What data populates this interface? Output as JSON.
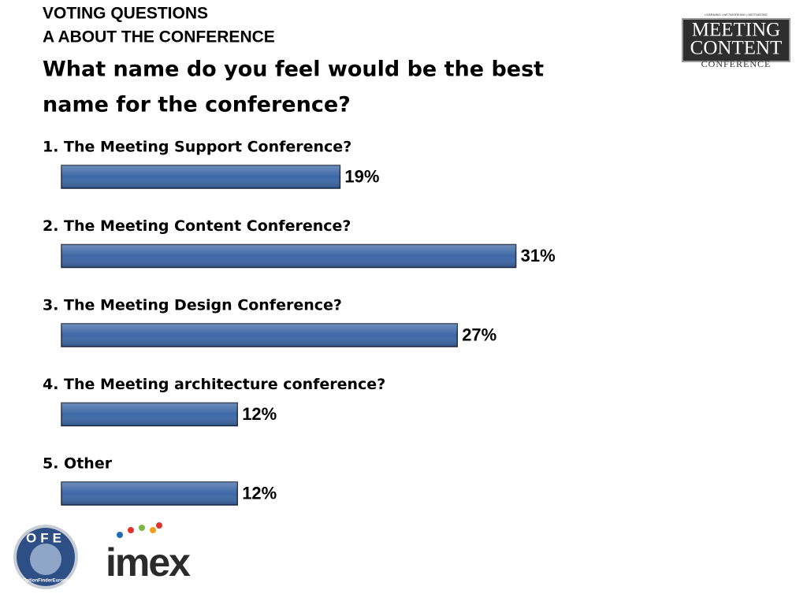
{
  "header": {
    "line1": "VOTING QUESTIONS",
    "line2": "A ABOUT THE CONFERENCE"
  },
  "chart_data": {
    "type": "bar",
    "orientation": "horizontal",
    "title": [
      "What name do you feel would be the best",
      "name for the conference?"
    ],
    "categories": [
      "1. The Meeting Support Conference?",
      "2. The Meeting Content Conference?",
      "3. The Meeting Design Conference?",
      "4. The Meeting architecture conference?",
      "5. Other"
    ],
    "values": [
      19,
      31,
      27,
      12,
      12
    ],
    "value_labels": [
      "19%",
      "31%",
      "27%",
      "12%",
      "12%"
    ],
    "color": "#3d68a6"
  },
  "logos": {
    "meeting_content": {
      "tagline": "LEARNING • NETWORKING • MOTIVATING",
      "line1": "MEETING",
      "line2": "CONTENT",
      "line3": "CONFERENCE"
    },
    "ofe": {
      "letters": "OFE",
      "name": "OptionFinderEurope"
    },
    "imex": "imex"
  }
}
